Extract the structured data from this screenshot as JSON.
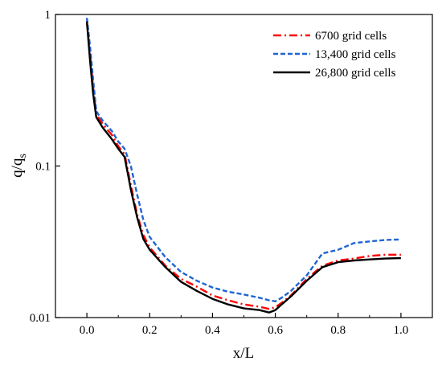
{
  "chart_data": {
    "type": "line",
    "title": "",
    "xlabel": "x/L",
    "ylabel_main": "q/q",
    "ylabel_sub": "s",
    "xlim": [
      -0.1,
      1.1
    ],
    "ylim": [
      0.01,
      1
    ],
    "yscale": "log",
    "grid": false,
    "legend_position": "top-right",
    "x_ticks": [
      0.0,
      0.2,
      0.4,
      0.6,
      0.8,
      1.0
    ],
    "x_tick_labels": [
      "0.0",
      "0.2",
      "0.4",
      "0.6",
      "0.8",
      "1.0"
    ],
    "y_ticks": [
      0.01,
      0.1,
      1
    ],
    "y_tick_labels": [
      "0.01",
      "0.1",
      "1"
    ],
    "series": [
      {
        "name": "6700 grid cells",
        "color": "#ff0000",
        "dash": "dashdot",
        "x": [
          0.0,
          0.01,
          0.02,
          0.03,
          0.05,
          0.08,
          0.1,
          0.12,
          0.14,
          0.16,
          0.18,
          0.2,
          0.25,
          0.3,
          0.35,
          0.4,
          0.45,
          0.5,
          0.55,
          0.58,
          0.6,
          0.62,
          0.65,
          0.7,
          0.75,
          0.8,
          0.85,
          0.9,
          0.95,
          1.0
        ],
        "y": [
          0.9,
          0.55,
          0.33,
          0.22,
          0.19,
          0.16,
          0.135,
          0.12,
          0.075,
          0.048,
          0.035,
          0.029,
          0.022,
          0.018,
          0.016,
          0.014,
          0.013,
          0.0122,
          0.0118,
          0.0114,
          0.0117,
          0.0125,
          0.014,
          0.018,
          0.022,
          0.0238,
          0.0245,
          0.0255,
          0.026,
          0.026
        ]
      },
      {
        "name": "13,400 grid cells",
        "color": "#1f64d2",
        "dash": "dash",
        "x": [
          0.0,
          0.01,
          0.02,
          0.03,
          0.05,
          0.08,
          0.1,
          0.12,
          0.14,
          0.16,
          0.18,
          0.2,
          0.25,
          0.3,
          0.35,
          0.4,
          0.45,
          0.5,
          0.55,
          0.58,
          0.6,
          0.62,
          0.65,
          0.7,
          0.75,
          0.8,
          0.85,
          0.9,
          0.95,
          1.0
        ],
        "y": [
          0.95,
          0.62,
          0.37,
          0.23,
          0.2,
          0.17,
          0.145,
          0.13,
          0.1,
          0.065,
          0.044,
          0.034,
          0.025,
          0.02,
          0.0175,
          0.0158,
          0.0148,
          0.0142,
          0.0135,
          0.013,
          0.0128,
          0.0135,
          0.015,
          0.019,
          0.0265,
          0.028,
          0.031,
          0.0318,
          0.0325,
          0.0328
        ]
      },
      {
        "name": "26,800 grid cells",
        "color": "#000000",
        "dash": "solid",
        "x": [
          0.0,
          0.01,
          0.02,
          0.03,
          0.05,
          0.08,
          0.1,
          0.12,
          0.13,
          0.14,
          0.16,
          0.18,
          0.2,
          0.25,
          0.3,
          0.35,
          0.4,
          0.45,
          0.5,
          0.55,
          0.58,
          0.6,
          0.62,
          0.65,
          0.7,
          0.75,
          0.8,
          0.85,
          0.9,
          0.95,
          1.0
        ],
        "y": [
          0.9,
          0.5,
          0.3,
          0.21,
          0.18,
          0.15,
          0.13,
          0.115,
          0.09,
          0.07,
          0.046,
          0.033,
          0.028,
          0.0215,
          0.0172,
          0.015,
          0.0133,
          0.0122,
          0.0115,
          0.0112,
          0.0108,
          0.0112,
          0.0122,
          0.0138,
          0.0175,
          0.0215,
          0.0232,
          0.0238,
          0.0242,
          0.0245,
          0.0247
        ]
      }
    ]
  }
}
